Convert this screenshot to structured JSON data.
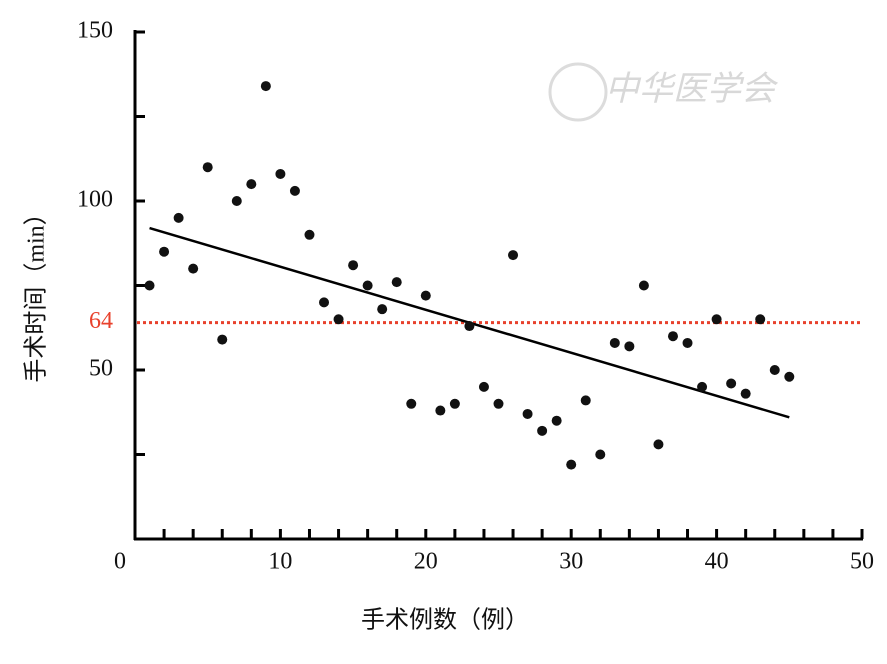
{
  "chart_data": {
    "type": "scatter",
    "x_label": "手术例数（例）",
    "y_label": "手术时间（min）",
    "watermark": "中华医学会",
    "xlim": [
      0,
      50
    ],
    "ylim": [
      0,
      150
    ],
    "xticks": [
      0,
      10,
      20,
      30,
      40,
      50
    ],
    "yticks": [
      50,
      100,
      150
    ],
    "x_minor_ticks": [
      2,
      4,
      6,
      8,
      12,
      14,
      16,
      18,
      22,
      24,
      26,
      28,
      32,
      34,
      36,
      38,
      42,
      44,
      46,
      48
    ],
    "y_minor_ticks": [
      25,
      75,
      125
    ],
    "color": "#111111",
    "x": [
      1,
      2,
      3,
      4,
      5,
      6,
      7,
      8,
      9,
      10,
      11,
      12,
      13,
      14,
      15,
      16,
      17,
      18,
      19,
      20,
      21,
      22,
      23,
      24,
      25,
      26,
      27,
      28,
      29,
      30,
      31,
      32,
      33,
      34,
      35,
      36,
      37,
      38,
      39,
      40,
      41,
      42,
      43,
      44,
      45
    ],
    "y": [
      75,
      85,
      95,
      80,
      110,
      59,
      100,
      105,
      134,
      108,
      103,
      90,
      70,
      65,
      81,
      75,
      68,
      76,
      40,
      72,
      38,
      40,
      63,
      45,
      40,
      84,
      37,
      32,
      35,
      22,
      41,
      25,
      58,
      57,
      75,
      28,
      60,
      58,
      45,
      65,
      46,
      43,
      65,
      50,
      48
    ],
    "trend": {
      "x": [
        1,
        45
      ],
      "y": [
        92,
        36
      ],
      "color": "#000000"
    },
    "reference_line": {
      "value": 64,
      "label": "64",
      "color": "#e8412c"
    }
  }
}
